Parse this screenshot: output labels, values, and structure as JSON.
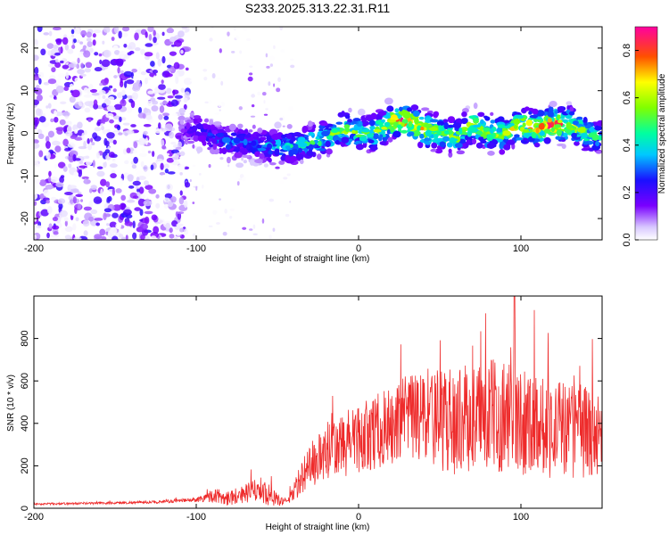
{
  "title": "S233.2025.313.22.31.R11",
  "colors": {
    "snr_line": "#ee2b2b",
    "axis": "#000000"
  },
  "chart_data": [
    {
      "type": "heatmap",
      "xlabel": "Height of straight line (km)",
      "ylabel": "Frequency (Hz)",
      "xlim": [
        -200,
        150
      ],
      "ylim": [
        -25,
        25
      ],
      "xticks": [
        -200,
        -100,
        0,
        100
      ],
      "yticks": [
        -20,
        -10,
        0,
        10,
        20
      ],
      "colorbar": {
        "label": "Normalized spectral amplitude",
        "range": [
          0,
          0.9
        ],
        "ticks": [
          0.0,
          0.2,
          0.4,
          0.6,
          0.8
        ]
      },
      "ridge": {
        "x": [
          -110,
          -100,
          -90,
          -80,
          -70,
          -60,
          -50,
          -40,
          -30,
          -20,
          -10,
          0,
          10,
          20,
          30,
          40,
          50,
          60,
          70,
          80,
          90,
          100,
          110,
          120,
          130,
          140,
          150
        ],
        "freq": [
          1,
          1,
          -1,
          -2,
          -2,
          -3,
          -3,
          -3,
          -2,
          -1,
          1,
          0,
          0,
          3,
          3,
          1,
          0,
          -1,
          2,
          0,
          0,
          2,
          1,
          2,
          2,
          0,
          -1
        ],
        "amplitude": [
          0.15,
          0.25,
          0.3,
          0.35,
          0.3,
          0.35,
          0.4,
          0.45,
          0.5,
          0.55,
          0.6,
          0.55,
          0.55,
          0.75,
          0.85,
          0.7,
          0.6,
          0.6,
          0.65,
          0.6,
          0.65,
          0.7,
          0.75,
          0.9,
          0.7,
          0.55,
          0.45
        ]
      },
      "noise_region": {
        "x_from": -200,
        "x_to": -105,
        "freq_range": [
          -25,
          25
        ]
      }
    },
    {
      "type": "line",
      "xlabel": "Height of straight line (km)",
      "ylabel": "SNR (10 * v/v)",
      "xlim": [
        -200,
        150
      ],
      "ylim": [
        0,
        1000
      ],
      "xticks": [
        -200,
        -100,
        0,
        100
      ],
      "yticks": [
        0,
        200,
        400,
        600,
        800
      ],
      "envelope": {
        "x": [
          -200,
          -150,
          -120,
          -100,
          -90,
          -80,
          -70,
          -60,
          -55,
          -50,
          -45,
          -40,
          -30,
          -20,
          -10,
          0,
          10,
          20,
          30,
          40,
          50,
          60,
          70,
          80,
          90,
          100,
          110,
          120,
          130,
          140,
          150
        ],
        "base": [
          20,
          25,
          30,
          40,
          60,
          50,
          70,
          90,
          60,
          40,
          30,
          80,
          200,
          260,
          290,
          330,
          360,
          380,
          420,
          430,
          420,
          410,
          430,
          440,
          440,
          420,
          410,
          380,
          370,
          360,
          340
        ],
        "spread": [
          8,
          10,
          12,
          20,
          60,
          70,
          80,
          110,
          90,
          50,
          30,
          90,
          200,
          260,
          280,
          300,
          320,
          340,
          380,
          420,
          440,
          460,
          460,
          480,
          500,
          480,
          460,
          440,
          420,
          400,
          380
        ]
      },
      "peak_max": 1000
    }
  ]
}
